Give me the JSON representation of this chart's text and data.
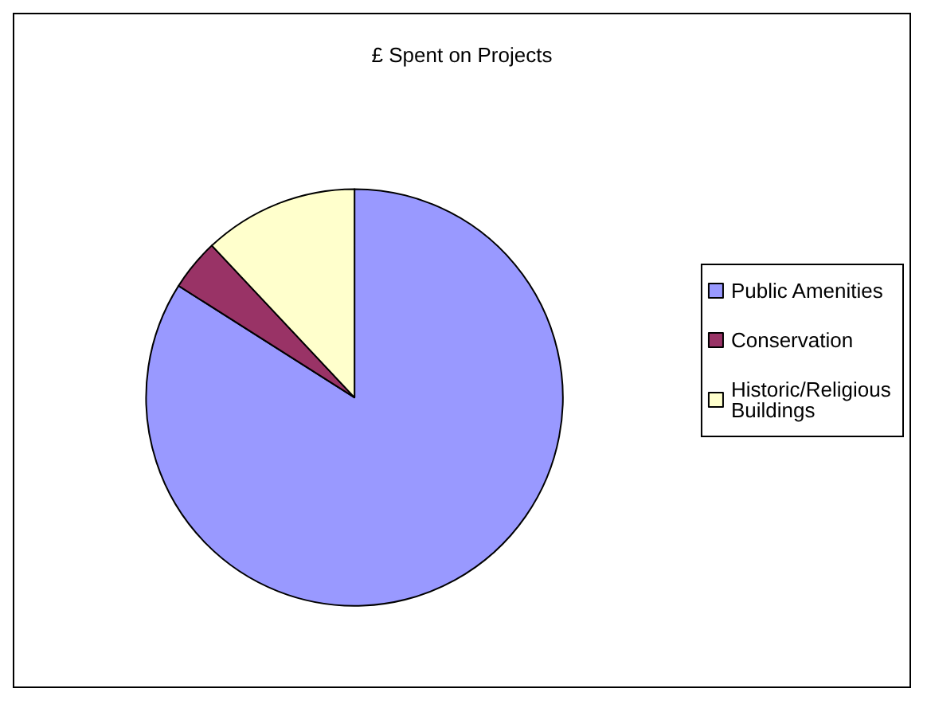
{
  "chart_data": {
    "type": "pie",
    "title": "£ Spent on Projects",
    "categories": [
      "Public Amenities",
      "Conservation",
      "Historic/Religious Buildings"
    ],
    "values": [
      84,
      4,
      12
    ],
    "colors": [
      "#9999ff",
      "#993366",
      "#ffffcc"
    ],
    "legend": "right"
  }
}
